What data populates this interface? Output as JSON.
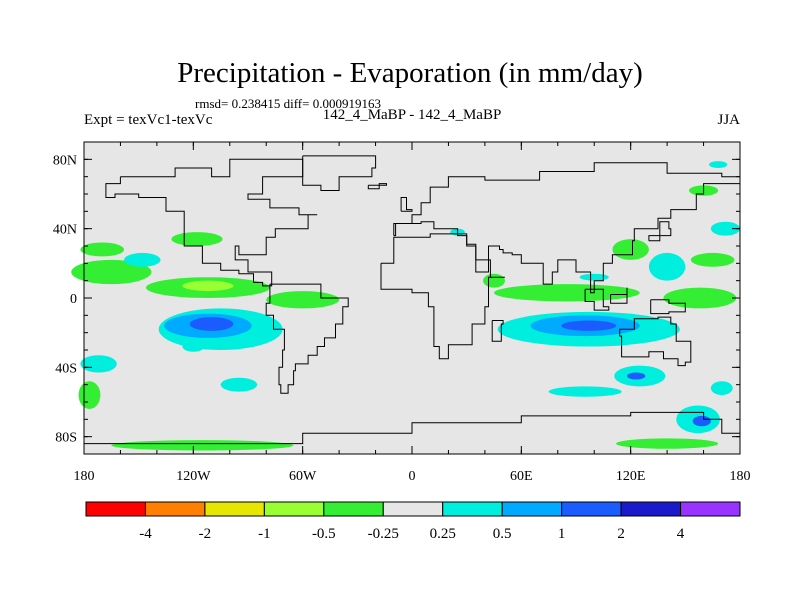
{
  "chart_data": {
    "type": "heatmap",
    "title": "Precipitation - Evaporation (in mm/day)",
    "subtitle": "rmsd= 0.238415 diff= 0.000919163",
    "expt_label": "Expt = texVc1-texVc",
    "case_label": "142_4_MaBP - 142_4_MaBP",
    "season": "JJA",
    "x_ticks": [
      "180",
      "120W",
      "60W",
      "0",
      "60E",
      "120E",
      "180"
    ],
    "y_ticks": [
      "80N",
      "40N",
      "0",
      "40S",
      "80S"
    ],
    "xlim": [
      -180,
      180
    ],
    "ylim": [
      -90,
      90
    ],
    "legend": {
      "levels": [
        "-4",
        "-2",
        "-1",
        "-0.5",
        "-0.25",
        "0.25",
        "0.5",
        "1",
        "2",
        "4"
      ],
      "colors": [
        "#ff0000",
        "#ff8000",
        "#e6e600",
        "#99ff33",
        "#33ee33",
        "#e6e6e6",
        "#00eedd",
        "#00aaff",
        "#1a5cff",
        "#1a1acc",
        "#9933ff"
      ]
    },
    "regions": [
      {
        "lon": -165,
        "lat": 15,
        "rx": 22,
        "ry": 7,
        "level": 4
      },
      {
        "lon": -112,
        "lat": 6,
        "rx": 34,
        "ry": 6,
        "level": 4
      },
      {
        "lon": -112,
        "lat": 7,
        "rx": 14,
        "ry": 3,
        "level": 3
      },
      {
        "lon": -60,
        "lat": -1,
        "rx": 20,
        "ry": 5,
        "level": 4
      },
      {
        "lon": -118,
        "lat": 34,
        "rx": 14,
        "ry": 4,
        "level": 4
      },
      {
        "lon": -170,
        "lat": 28,
        "rx": 12,
        "ry": 4,
        "level": 4
      },
      {
        "lon": -105,
        "lat": -18,
        "rx": 34,
        "ry": 12,
        "level": 6
      },
      {
        "lon": -112,
        "lat": -16,
        "rx": 24,
        "ry": 7,
        "level": 7
      },
      {
        "lon": -110,
        "lat": -15,
        "rx": 12,
        "ry": 4,
        "level": 8
      },
      {
        "lon": -148,
        "lat": 22,
        "rx": 10,
        "ry": 4,
        "level": 6
      },
      {
        "lon": -172,
        "lat": -38,
        "rx": 10,
        "ry": 5,
        "level": 6
      },
      {
        "lon": -95,
        "lat": -50,
        "rx": 10,
        "ry": 4,
        "level": 6
      },
      {
        "lon": -177,
        "lat": -56,
        "rx": 6,
        "ry": 8,
        "level": 4
      },
      {
        "lon": -115,
        "lat": -85,
        "rx": 50,
        "ry": 3,
        "level": 4
      },
      {
        "lon": 85,
        "lat": 3,
        "rx": 40,
        "ry": 5,
        "level": 4
      },
      {
        "lon": 97,
        "lat": -18,
        "rx": 50,
        "ry": 10,
        "level": 6
      },
      {
        "lon": 95,
        "lat": -16,
        "rx": 30,
        "ry": 6,
        "level": 7
      },
      {
        "lon": 97,
        "lat": -16,
        "rx": 15,
        "ry": 3,
        "level": 8
      },
      {
        "lon": 158,
        "lat": 0,
        "rx": 20,
        "ry": 6,
        "level": 4
      },
      {
        "lon": 140,
        "lat": 18,
        "rx": 10,
        "ry": 8,
        "level": 6
      },
      {
        "lon": 120,
        "lat": 28,
        "rx": 10,
        "ry": 6,
        "level": 4
      },
      {
        "lon": 165,
        "lat": 22,
        "rx": 12,
        "ry": 4,
        "level": 4
      },
      {
        "lon": 172,
        "lat": 40,
        "rx": 8,
        "ry": 4,
        "level": 6
      },
      {
        "lon": 125,
        "lat": -45,
        "rx": 14,
        "ry": 6,
        "level": 6
      },
      {
        "lon": 123,
        "lat": -45,
        "rx": 5,
        "ry": 2,
        "level": 8
      },
      {
        "lon": 157,
        "lat": -70,
        "rx": 12,
        "ry": 8,
        "level": 6
      },
      {
        "lon": 159,
        "lat": -71,
        "rx": 5,
        "ry": 3,
        "level": 8
      },
      {
        "lon": 140,
        "lat": -84,
        "rx": 28,
        "ry": 3,
        "level": 4
      },
      {
        "lon": 95,
        "lat": -54,
        "rx": 20,
        "ry": 3,
        "level": 6
      },
      {
        "lon": 45,
        "lat": 10,
        "rx": 6,
        "ry": 4,
        "level": 4
      },
      {
        "lon": 100,
        "lat": 12,
        "rx": 8,
        "ry": 2,
        "level": 6
      },
      {
        "lon": 25,
        "lat": 38,
        "rx": 4,
        "ry": 2,
        "level": 6
      },
      {
        "lon": 160,
        "lat": 62,
        "rx": 8,
        "ry": 3,
        "level": 4
      },
      {
        "lon": -120,
        "lat": -28,
        "rx": 6,
        "ry": 3,
        "level": 6
      },
      {
        "lon": 170,
        "lat": -52,
        "rx": 6,
        "ry": 4,
        "level": 6
      },
      {
        "lon": 168,
        "lat": 77,
        "rx": 5,
        "ry": 2,
        "level": 6
      }
    ],
    "coastlines": [
      [
        [
          -160,
          70
        ],
        [
          -140,
          70
        ],
        [
          -130,
          75
        ],
        [
          -110,
          70
        ],
        [
          -100,
          80
        ],
        [
          -70,
          80
        ],
        [
          -60,
          70
        ],
        [
          -82,
          60
        ],
        [
          -90,
          57
        ],
        [
          -78,
          52
        ],
        [
          -62,
          48
        ],
        [
          -52,
          48
        ],
        [
          -57,
          40
        ],
        [
          -75,
          35
        ],
        [
          -80,
          25
        ],
        [
          -95,
          30
        ],
        [
          -97,
          22
        ],
        [
          -90,
          15
        ],
        [
          -77,
          7
        ],
        [
          -82,
          9
        ],
        [
          -87,
          14
        ],
        [
          -95,
          16
        ],
        [
          -105,
          20
        ],
        [
          -115,
          30
        ],
        [
          -125,
          40
        ],
        [
          -125,
          50
        ],
        [
          -135,
          58
        ],
        [
          -150,
          60
        ],
        [
          -163,
          58
        ],
        [
          -168,
          66
        ],
        [
          -160,
          70
        ]
      ],
      [
        [
          -78,
          8
        ],
        [
          -60,
          8
        ],
        [
          -50,
          0
        ],
        [
          -35,
          -5
        ],
        [
          -38,
          -15
        ],
        [
          -42,
          -23
        ],
        [
          -48,
          -28
        ],
        [
          -52,
          -33
        ],
        [
          -57,
          -38
        ],
        [
          -64,
          -42
        ],
        [
          -65,
          -50
        ],
        [
          -68,
          -55
        ],
        [
          -72,
          -50
        ],
        [
          -73,
          -40
        ],
        [
          -71,
          -30
        ],
        [
          -70,
          -18
        ],
        [
          -76,
          -10
        ],
        [
          -80,
          -3
        ],
        [
          -78,
          8
        ]
      ],
      [
        [
          -60,
          82
        ],
        [
          -30,
          82
        ],
        [
          -20,
          75
        ],
        [
          -22,
          70
        ],
        [
          -40,
          62
        ],
        [
          -50,
          65
        ],
        [
          -60,
          75
        ],
        [
          -60,
          82
        ]
      ],
      [
        [
          -17,
          20
        ],
        [
          -10,
          35
        ],
        [
          10,
          37
        ],
        [
          30,
          31
        ],
        [
          35,
          22
        ],
        [
          43,
          12
        ],
        [
          51,
          12
        ],
        [
          42,
          -5
        ],
        [
          40,
          -15
        ],
        [
          33,
          -27
        ],
        [
          20,
          -35
        ],
        [
          15,
          -28
        ],
        [
          12,
          -15
        ],
        [
          12,
          -5
        ],
        [
          9,
          3
        ],
        [
          0,
          5
        ],
        [
          -10,
          5
        ],
        [
          -17,
          12
        ],
        [
          -17,
          20
        ]
      ],
      [
        [
          -10,
          36
        ],
        [
          -9,
          43
        ],
        [
          0,
          48
        ],
        [
          5,
          55
        ],
        [
          10,
          58
        ],
        [
          10,
          64
        ],
        [
          20,
          70
        ],
        [
          40,
          68
        ],
        [
          70,
          73
        ],
        [
          100,
          78
        ],
        [
          140,
          72
        ],
        [
          170,
          70
        ],
        [
          180,
          66
        ],
        [
          160,
          60
        ],
        [
          156,
          51
        ],
        [
          142,
          46
        ],
        [
          135,
          40
        ],
        [
          122,
          33
        ],
        [
          121,
          25
        ],
        [
          110,
          20
        ],
        [
          105,
          10
        ],
        [
          100,
          3
        ],
        [
          98,
          15
        ],
        [
          90,
          22
        ],
        [
          80,
          15
        ],
        [
          77,
          8
        ],
        [
          72,
          20
        ],
        [
          60,
          25
        ],
        [
          55,
          26
        ],
        [
          50,
          28
        ],
        [
          48,
          30
        ],
        [
          42,
          15
        ],
        [
          35,
          30
        ],
        [
          30,
          36
        ],
        [
          25,
          40
        ],
        [
          20,
          40
        ],
        [
          12,
          44
        ],
        [
          5,
          43
        ],
        [
          -10,
          36
        ]
      ],
      [
        [
          114,
          -22
        ],
        [
          115,
          -34
        ],
        [
          130,
          -31
        ],
        [
          138,
          -35
        ],
        [
          146,
          -39
        ],
        [
          150,
          -37
        ],
        [
          153,
          -25
        ],
        [
          145,
          -15
        ],
        [
          142,
          -11
        ],
        [
          135,
          -12
        ],
        [
          130,
          -12
        ],
        [
          122,
          -18
        ],
        [
          114,
          -22
        ]
      ],
      [
        [
          -180,
          -84
        ],
        [
          -120,
          -84
        ],
        [
          -60,
          -78
        ],
        [
          -30,
          -78
        ],
        [
          0,
          -72
        ],
        [
          60,
          -68
        ],
        [
          120,
          -66
        ],
        [
          160,
          -70
        ],
        [
          170,
          -78
        ],
        [
          180,
          -84
        ]
      ],
      [
        [
          130,
          33
        ],
        [
          136,
          36
        ],
        [
          142,
          40
        ],
        [
          141,
          44
        ],
        [
          136,
          36
        ],
        [
          130,
          33
        ]
      ],
      [
        [
          44,
          -13
        ],
        [
          50,
          -15
        ],
        [
          49,
          -25
        ],
        [
          44,
          -22
        ],
        [
          44,
          -13
        ]
      ],
      [
        [
          95,
          5
        ],
        [
          105,
          -5
        ],
        [
          108,
          -7
        ],
        [
          100,
          -2
        ],
        [
          95,
          5
        ]
      ],
      [
        [
          109,
          2
        ],
        [
          118,
          6
        ],
        [
          118,
          -3
        ],
        [
          110,
          -3
        ],
        [
          109,
          2
        ]
      ],
      [
        [
          131,
          -1
        ],
        [
          141,
          -3
        ],
        [
          150,
          -8
        ],
        [
          141,
          -9
        ],
        [
          131,
          -1
        ]
      ],
      [
        [
          -6,
          50
        ],
        [
          0,
          51
        ],
        [
          -3,
          58
        ],
        [
          -6,
          50
        ]
      ],
      [
        [
          -24,
          65
        ],
        [
          -14,
          66
        ],
        [
          -18,
          63
        ],
        [
          -24,
          65
        ]
      ]
    ]
  }
}
